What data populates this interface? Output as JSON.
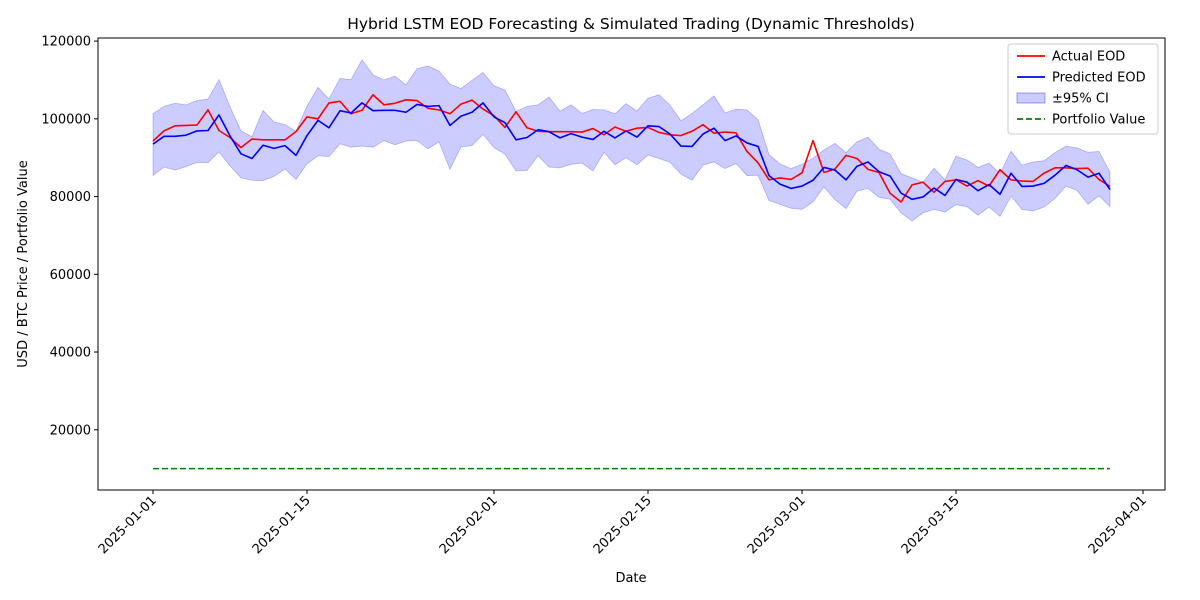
{
  "chart_data": {
    "type": "line",
    "title": "Hybrid LSTM EOD Forecasting & Simulated Trading (Dynamic Thresholds)",
    "xlabel": "Date",
    "ylabel": "USD / BTC Price / Portfolio Value",
    "x_start": "2025-01-01",
    "xlim": [
      "2024-12-27",
      "2025-04-03"
    ],
    "ylim": [
      4500,
      120800
    ],
    "x_ticks": [
      "2025-01-01",
      "2025-01-15",
      "2025-02-01",
      "2025-02-15",
      "2025-03-01",
      "2025-03-15",
      "2025-04-01"
    ],
    "y_ticks": [
      20000,
      40000,
      60000,
      80000,
      100000,
      120000
    ],
    "grid": false,
    "legend_position": "top-right",
    "legend": [
      "Actual EOD",
      "Predicted EOD",
      "±95% CI",
      "Portfolio Value"
    ],
    "series": [
      {
        "name": "Actual EOD",
        "color": "#ff0000",
        "style": "solid",
        "values": [
          94300,
          96900,
          98200,
          98300,
          98400,
          102300,
          97000,
          95200,
          92600,
          94800,
          94600,
          94600,
          94600,
          96700,
          100500,
          100000,
          104100,
          104500,
          101300,
          102200,
          106200,
          103600,
          104000,
          104900,
          104700,
          102700,
          102300,
          101300,
          103800,
          104800,
          102500,
          100800,
          97800,
          101800,
          97700,
          96800,
          96700,
          96700,
          96700,
          96600,
          97500,
          95900,
          97900,
          96800,
          97600,
          97800,
          96500,
          95900,
          95700,
          96800,
          98500,
          96300,
          96600,
          96400,
          91600,
          88700,
          84300,
          84800,
          84400,
          86100,
          94400,
          86200,
          87100,
          90600,
          89800,
          87000,
          86200,
          80900,
          78600,
          83000,
          83700,
          81100,
          83900,
          84300,
          82700,
          84100,
          82700,
          86900,
          84300,
          84000,
          83900,
          86000,
          87400,
          87400,
          87200,
          87300,
          84400,
          82600
        ],
        "ci_width": 8000
      },
      {
        "name": "Predicted EOD",
        "color": "#0000ff",
        "style": "solid",
        "values": [
          93500,
          95500,
          95500,
          95800,
          96900,
          97000,
          101000,
          95600,
          91000,
          89800,
          93200,
          92400,
          93100,
          90600,
          95700,
          99600,
          97700,
          102100,
          101500,
          104100,
          102100,
          102200,
          102200,
          101700,
          103700,
          103200,
          103400,
          98300,
          100700,
          101700,
          104100,
          100500,
          99000,
          94600,
          95200,
          97200,
          96700,
          95100,
          96200,
          95300,
          94700,
          96800,
          95100,
          96900,
          95300,
          98200,
          98000,
          96100,
          93000,
          92900,
          96100,
          97600,
          94400,
          95600,
          93800,
          92900,
          85400,
          83200,
          82100,
          82700,
          84200,
          87500,
          86800,
          84300,
          87800,
          88900,
          86400,
          85300,
          80900,
          79300,
          79900,
          82200,
          80300,
          84400,
          83700,
          81500,
          83100,
          80600,
          86000,
          82600,
          82700,
          83400,
          85500,
          88000,
          86900,
          85000,
          86000,
          81800
        ],
        "ci_width": 8000
      },
      {
        "name": "Portfolio Value",
        "color": "#008000",
        "style": "dashed",
        "values": [
          10000,
          10000,
          10000,
          10000,
          10000,
          10000,
          10000,
          10000,
          10000,
          10000,
          10000,
          10000,
          10000,
          10000,
          10000,
          10000,
          10000,
          10000,
          10000,
          10000,
          10000,
          10000,
          10000,
          10000,
          10000,
          10000,
          10000,
          10000,
          10000,
          10000,
          10000,
          10000,
          10000,
          10000,
          10000,
          10000,
          10000,
          10000,
          10000,
          10000,
          10000,
          10000,
          10000,
          10000,
          10000,
          10000,
          10000,
          10000,
          10000,
          10000,
          10000,
          10000,
          10000,
          10000,
          10000,
          10000,
          10000,
          10000,
          10000,
          10000,
          10000,
          10000,
          10000,
          10000,
          10000,
          10000,
          10000,
          10000,
          10000,
          10000,
          10000,
          10000,
          10000,
          10000,
          10000,
          10000,
          10000,
          10000,
          10000,
          10000,
          10000,
          10000,
          10000,
          10000,
          10000,
          10000,
          10000,
          10000
        ]
      }
    ],
    "ci_band": {
      "name": "±95% CI",
      "color": "#0000ff",
      "fill_opacity": 0.2,
      "upper": [
        101300,
        103200,
        104000,
        103600,
        104700,
        105100,
        110100,
        103100,
        96900,
        95400,
        102200,
        99200,
        98500,
        96800,
        103300,
        108100,
        105100,
        110400,
        110100,
        115200,
        111300,
        110000,
        111000,
        108700,
        112900,
        113600,
        112300,
        108900,
        107800,
        109900,
        111900,
        108500,
        107400,
        101900,
        103200,
        103600,
        105600,
        102000,
        103600,
        101400,
        102400,
        102300,
        101300,
        103900,
        102000,
        105300,
        106200,
        103500,
        99500,
        101400,
        103600,
        105900,
        101500,
        102500,
        102300,
        99800,
        90800,
        88400,
        87200,
        88300,
        89900,
        92000,
        93700,
        91300,
        94100,
        95300,
        92200,
        91000,
        85900,
        84800,
        83700,
        87300,
        84300,
        90400,
        89400,
        87500,
        88600,
        85900,
        91700,
        88100,
        88900,
        89200,
        91300,
        93000,
        92500,
        91400,
        91600,
        86300
      ],
      "lower": [
        85400,
        87600,
        86800,
        87700,
        88800,
        88700,
        91500,
        87900,
        84800,
        84200,
        84100,
        85200,
        87100,
        84400,
        88400,
        90500,
        90300,
        93600,
        92700,
        93000,
        92700,
        94400,
        93300,
        94300,
        94400,
        92300,
        94100,
        87000,
        92800,
        93100,
        96000,
        92600,
        90900,
        86600,
        86700,
        90500,
        87600,
        87400,
        88300,
        88600,
        86600,
        91400,
        88200,
        90000,
        88200,
        90700,
        89800,
        88800,
        85800,
        84200,
        88100,
        88900,
        87200,
        88500,
        85400,
        85500,
        79000,
        78000,
        77000,
        76700,
        78600,
        82500,
        79200,
        76900,
        81400,
        82100,
        79800,
        79300,
        75800,
        73700,
        75800,
        76700,
        76000,
        77900,
        77400,
        75200,
        77300,
        74900,
        80100,
        76700,
        76300,
        77300,
        79500,
        82700,
        81600,
        78000,
        80200,
        77400
      ]
    }
  }
}
